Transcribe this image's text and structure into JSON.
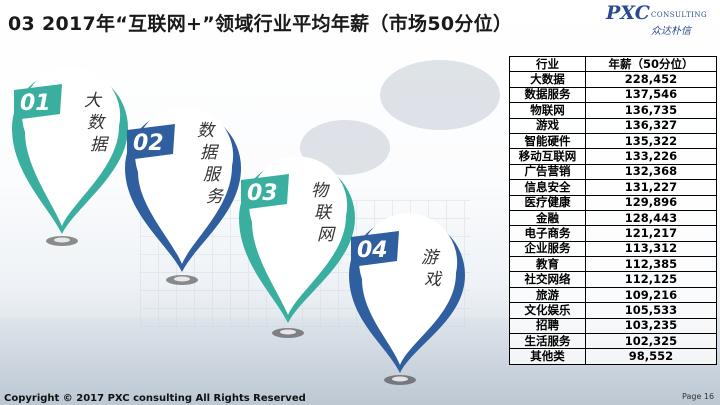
{
  "title": "03 2017年“互联网+”领域行业平均年薪（市场50分位）",
  "logo": {
    "main": "PXC",
    "sub": "CONSULTING",
    "cn": "众达朴信"
  },
  "pins": [
    {
      "num": "01",
      "label": "大数据",
      "color": "#3aaf9f"
    },
    {
      "num": "02",
      "label": "数据服务",
      "color": "#2f5f9e"
    },
    {
      "num": "03",
      "label": "物联网",
      "color": "#3aaf9f"
    },
    {
      "num": "04",
      "label": "游戏",
      "color": "#2f5f9e"
    }
  ],
  "chart_data": {
    "type": "table",
    "columns": [
      "行业",
      "年薪（50分位）"
    ],
    "rows": [
      [
        "大数据",
        "228,452"
      ],
      [
        "数据服务",
        "137,546"
      ],
      [
        "物联网",
        "136,735"
      ],
      [
        "游戏",
        "136,327"
      ],
      [
        "智能硬件",
        "135,322"
      ],
      [
        "移动互联网",
        "133,226"
      ],
      [
        "广告营销",
        "132,368"
      ],
      [
        "信息安全",
        "131,227"
      ],
      [
        "医疗健康",
        "129,896"
      ],
      [
        "金融",
        "128,443"
      ],
      [
        "电子商务",
        "121,217"
      ],
      [
        "企业服务",
        "113,312"
      ],
      [
        "教育",
        "112,385"
      ],
      [
        "社交网络",
        "112,125"
      ],
      [
        "旅游",
        "109,216"
      ],
      [
        "文化娱乐",
        "105,533"
      ],
      [
        "招聘",
        "103,235"
      ],
      [
        "生活服务",
        "102,325"
      ],
      [
        "其他类",
        "98,552"
      ]
    ]
  },
  "footer": "Copyright © 2017 PXC consulting All Rights Reserved",
  "page_label": "Page 16"
}
